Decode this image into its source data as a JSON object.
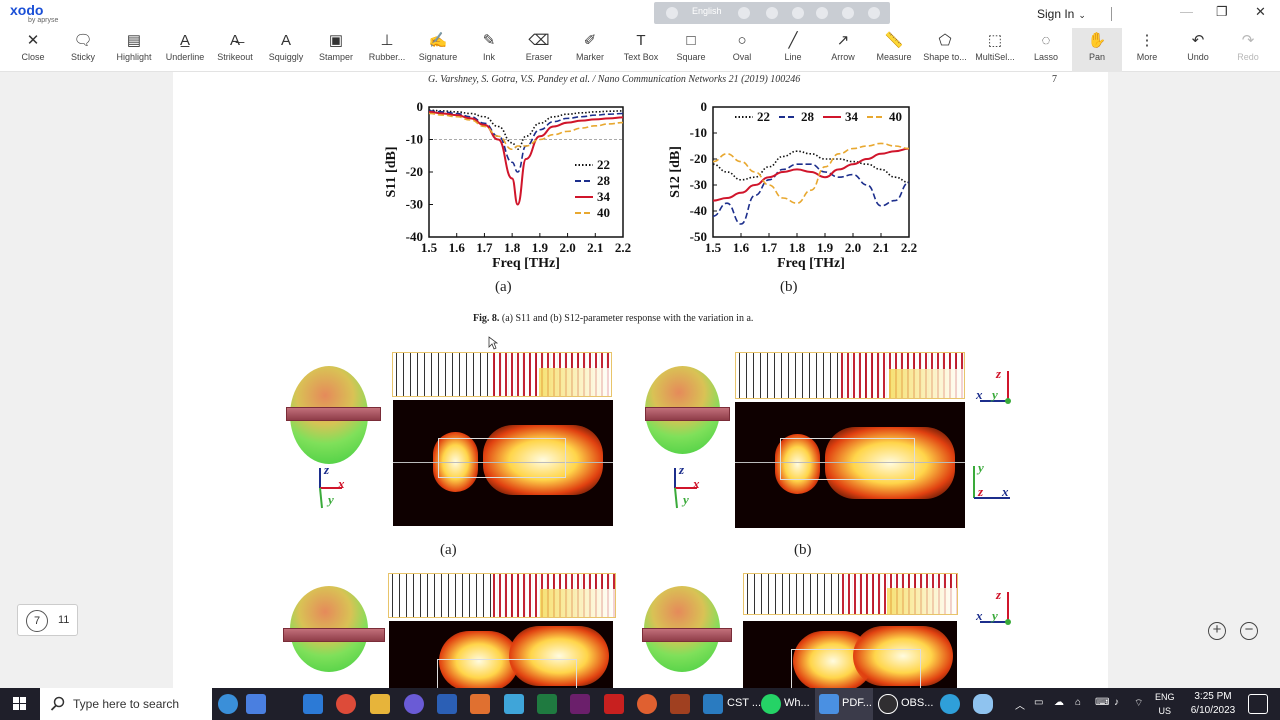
{
  "app": {
    "logo_text": "xodo",
    "logo_sub": "by apryse",
    "language": "English",
    "sign_in": "Sign In"
  },
  "toolbar": [
    {
      "label": "Close",
      "icon": "✕"
    },
    {
      "label": "Sticky",
      "icon": "🗨"
    },
    {
      "label": "Highlight",
      "icon": "▤"
    },
    {
      "label": "Underline",
      "icon": "A̲"
    },
    {
      "label": "Strikeout",
      "icon": "A̶"
    },
    {
      "label": "Squiggly",
      "icon": "A"
    },
    {
      "label": "Stamper",
      "icon": "▣"
    },
    {
      "label": "Rubber...",
      "icon": "⊥"
    },
    {
      "label": "Signature",
      "icon": "✍"
    },
    {
      "label": "Ink",
      "icon": "✎"
    },
    {
      "label": "Eraser",
      "icon": "⌫"
    },
    {
      "label": "Marker",
      "icon": "✐"
    },
    {
      "label": "Text Box",
      "icon": "T"
    },
    {
      "label": "Square",
      "icon": "□"
    },
    {
      "label": "Oval",
      "icon": "○"
    },
    {
      "label": "Line",
      "icon": "╱"
    },
    {
      "label": "Arrow",
      "icon": "↗"
    },
    {
      "label": "Measure",
      "icon": "📏"
    },
    {
      "label": "Shape to...",
      "icon": "⬠"
    },
    {
      "label": "MultiSel...",
      "icon": "⬚"
    },
    {
      "label": "Lasso",
      "icon": "◌"
    },
    {
      "label": "Pan",
      "icon": "✋"
    },
    {
      "label": "More",
      "icon": "⋮"
    },
    {
      "label": "Undo",
      "icon": "↶"
    },
    {
      "label": "Redo",
      "icon": "↷"
    }
  ],
  "document": {
    "running_head": "G. Varshney, S. Gotra, V.S. Pandey et al. / Nano Communication Networks 21 (2019) 100246",
    "page_number": "7",
    "caption_prefix": "Fig. 8.",
    "caption_text": "(a) S11 and (b) S12-parameter response with the variation in a.",
    "sub_a": "(a)",
    "sub_b": "(b)",
    "fig9_sub_a": "(a)",
    "fig9_sub_b": "(b)",
    "axis_labels": {
      "z": "z",
      "x": "x",
      "y": "y"
    }
  },
  "pager": {
    "current": "7",
    "total": "11"
  },
  "zoom": {
    "in": "+",
    "out": "−"
  },
  "taskbar": {
    "search_placeholder": "Type here to search",
    "apps": [
      "CST ...",
      "Wh...",
      "PDF...",
      "OBS..."
    ],
    "lang_line1": "ENG",
    "lang_line2": "US",
    "time": "3:25 PM",
    "date": "6/10/2023"
  },
  "chart_data": [
    {
      "type": "line",
      "x": [
        1.5,
        1.55,
        1.6,
        1.65,
        1.7,
        1.75,
        1.8,
        1.82,
        1.85,
        1.9,
        1.95,
        2.0,
        2.05,
        2.1,
        2.15,
        2.2
      ],
      "series": [
        {
          "name": "22",
          "color": "#111111",
          "dash": "dot",
          "values": [
            -1,
            -1.2,
            -1.5,
            -2,
            -3,
            -6,
            -11,
            -13,
            -9,
            -5,
            -3,
            -2.2,
            -1.8,
            -1.5,
            -1.3,
            -1.2
          ]
        },
        {
          "name": "28",
          "color": "#1c2e8c",
          "dash": "dash",
          "values": [
            -1.2,
            -1.5,
            -2,
            -3,
            -5,
            -9,
            -17,
            -20,
            -12,
            -7,
            -4.5,
            -3.5,
            -3,
            -2.5,
            -2.2,
            -2
          ]
        },
        {
          "name": "34",
          "color": "#d0152b",
          "dash": "solid",
          "values": [
            -1.5,
            -2,
            -2.5,
            -3.5,
            -5.5,
            -10,
            -22,
            -30,
            -16,
            -9,
            -6,
            -4.8,
            -4.2,
            -3.8,
            -3.5,
            -3.2
          ]
        },
        {
          "name": "40",
          "color": "#e8a830",
          "dash": "dash",
          "values": [
            -2,
            -2.5,
            -3,
            -4,
            -6,
            -9,
            -13,
            -12,
            -12,
            -10,
            -8.5,
            -7.5,
            -6.5,
            -5.8,
            -5.2,
            -4.8
          ]
        }
      ],
      "xlabel": "Freq [THz]",
      "ylabel": "S11 [dB]",
      "xlim": [
        1.5,
        2.2
      ],
      "ylim": [
        -40,
        0
      ],
      "xticks": [
        "1.5",
        "1.6",
        "1.7",
        "1.8",
        "1.9",
        "2.0",
        "2.1",
        "2.2"
      ],
      "yticks": [
        "0",
        "-10",
        "-20",
        "-30",
        "-40"
      ],
      "reference_line": -10,
      "legend": "bottom-right"
    },
    {
      "type": "line",
      "x": [
        1.5,
        1.55,
        1.6,
        1.65,
        1.7,
        1.75,
        1.8,
        1.85,
        1.9,
        1.95,
        2.0,
        2.05,
        2.1,
        2.15,
        2.2
      ],
      "series": [
        {
          "name": "22",
          "color": "#111111",
          "dash": "dot",
          "values": [
            -22,
            -25,
            -28,
            -27,
            -23,
            -19,
            -17,
            -18,
            -20,
            -20,
            -21,
            -22,
            -24,
            -27,
            -29
          ]
        },
        {
          "name": "28",
          "color": "#1c2e8c",
          "dash": "dash",
          "values": [
            -42,
            -37,
            -45,
            -34,
            -28,
            -24,
            -22,
            -22,
            -25,
            -27,
            -26,
            -30,
            -38,
            -36,
            -29
          ]
        },
        {
          "name": "34",
          "color": "#d0152b",
          "dash": "solid",
          "values": [
            -36,
            -35,
            -33,
            -30,
            -27,
            -25,
            -24,
            -25,
            -27,
            -24,
            -22,
            -20,
            -18,
            -17,
            -16
          ]
        },
        {
          "name": "40",
          "color": "#e8a830",
          "dash": "dash",
          "values": [
            -21,
            -18,
            -21,
            -25,
            -30,
            -35,
            -37,
            -32,
            -23,
            -18,
            -16,
            -15,
            -14,
            -15,
            -16
          ]
        }
      ],
      "xlabel": "Freq [THz]",
      "ylabel": "S12 [dB]",
      "xlim": [
        1.5,
        2.2
      ],
      "ylim": [
        -50,
        0
      ],
      "xticks": [
        "1.5",
        "1.6",
        "1.7",
        "1.8",
        "1.9",
        "2.0",
        "2.1",
        "2.2"
      ],
      "yticks": [
        "0",
        "-10",
        "-20",
        "-30",
        "-40",
        "-50"
      ],
      "legend": "top"
    }
  ]
}
